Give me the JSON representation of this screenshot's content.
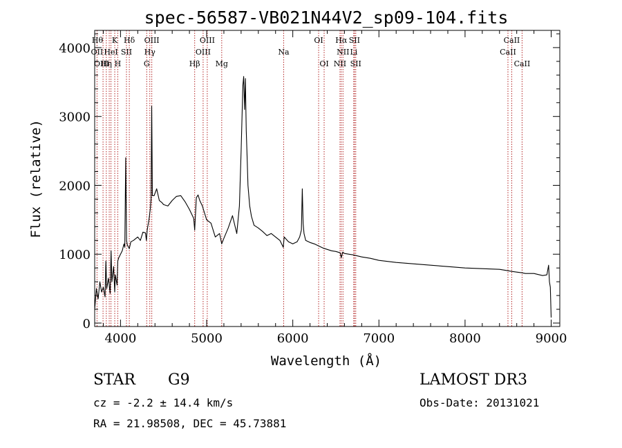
{
  "chart_data": {
    "type": "line",
    "title": "spec-56587-VB021N44V2_sp09-104.fits",
    "xlabel": "Wavelength (Å)",
    "ylabel": "Flux (relative)",
    "xlim": [
      3700,
      9100
    ],
    "ylim": [
      -50,
      4250
    ],
    "xticks": [
      4000,
      5000,
      6000,
      7000,
      8000,
      9000
    ],
    "yticks": [
      0,
      1000,
      2000,
      3000,
      4000
    ],
    "series": [
      {
        "name": "flux",
        "x": [
          3700,
          3720,
          3740,
          3760,
          3780,
          3800,
          3820,
          3830,
          3840,
          3860,
          3880,
          3890,
          3900,
          3920,
          3933,
          3940,
          3960,
          3968,
          3980,
          4000,
          4020,
          4040,
          4050,
          4060,
          4070,
          4080,
          4102,
          4120,
          4150,
          4180,
          4200,
          4230,
          4260,
          4290,
          4300,
          4310,
          4330,
          4345,
          4355,
          4362,
          4370,
          4390,
          4420,
          4450,
          4480,
          4500,
          4550,
          4600,
          4650,
          4700,
          4750,
          4800,
          4850,
          4861,
          4880,
          4900,
          4920,
          4950,
          4980,
          5000,
          5050,
          5100,
          5150,
          5175,
          5200,
          5250,
          5300,
          5350,
          5380,
          5400,
          5420,
          5430,
          5440,
          5450,
          5455,
          5460,
          5470,
          5480,
          5500,
          5520,
          5550,
          5600,
          5650,
          5700,
          5750,
          5800,
          5850,
          5890,
          5900,
          5950,
          6000,
          6050,
          6080,
          6100,
          6110,
          6120,
          6130,
          6150,
          6200,
          6250,
          6300,
          6350,
          6400,
          6450,
          6500,
          6550,
          6563,
          6580,
          6600,
          6700,
          6800,
          6900,
          7000,
          7200,
          7400,
          7600,
          7800,
          8000,
          8200,
          8400,
          8498,
          8542,
          8600,
          8662,
          8700,
          8800,
          8900,
          8950,
          8970,
          8980,
          8990,
          9000
        ],
        "values": [
          200,
          500,
          350,
          600,
          450,
          520,
          380,
          900,
          500,
          650,
          430,
          1050,
          600,
          820,
          450,
          700,
          550,
          900,
          950,
          1000,
          1050,
          1150,
          1100,
          2400,
          1200,
          1130,
          1080,
          1180,
          1200,
          1230,
          1250,
          1200,
          1320,
          1310,
          1200,
          1350,
          1500,
          1650,
          1800,
          3150,
          1850,
          1850,
          1950,
          1780,
          1750,
          1720,
          1700,
          1780,
          1840,
          1850,
          1760,
          1650,
          1520,
          1350,
          1820,
          1860,
          1780,
          1700,
          1580,
          1500,
          1450,
          1250,
          1300,
          1150,
          1230,
          1380,
          1560,
          1300,
          1700,
          2500,
          3450,
          3580,
          3100,
          3550,
          3150,
          2800,
          2400,
          2000,
          1700,
          1550,
          1420,
          1380,
          1330,
          1270,
          1300,
          1250,
          1200,
          1100,
          1250,
          1180,
          1150,
          1180,
          1250,
          1350,
          1950,
          1450,
          1300,
          1200,
          1170,
          1150,
          1120,
          1090,
          1070,
          1050,
          1040,
          1020,
          950,
          1030,
          1010,
          990,
          960,
          940,
          910,
          880,
          860,
          840,
          820,
          800,
          790,
          780,
          760,
          750,
          740,
          730,
          720,
          720,
          690,
          700,
          840,
          600,
          520,
          80
        ]
      }
    ],
    "line_markers": [
      {
        "name": "Hθ",
        "wavelength": 3797,
        "row": 0,
        "align": "right"
      },
      {
        "name": "Hη",
        "wavelength": 3835,
        "row": 2,
        "align": "center"
      },
      {
        "name": "OII",
        "wavelength": 3727,
        "row": 1,
        "align": "center"
      },
      {
        "name": "OIII",
        "wavelength": 3869,
        "row": 2,
        "align": "right"
      },
      {
        "name": "HeI",
        "wavelength": 3889,
        "row": 1,
        "align": "center"
      },
      {
        "name": "K",
        "wavelength": 3933,
        "row": 0,
        "align": "center"
      },
      {
        "name": "H",
        "wavelength": 3968,
        "row": 2,
        "align": "center"
      },
      {
        "name": "SII",
        "wavelength": 4069,
        "row": 1,
        "align": "center"
      },
      {
        "name": "Hδ",
        "wavelength": 4102,
        "row": 0,
        "align": "center"
      },
      {
        "name": "G",
        "wavelength": 4304,
        "row": 2,
        "align": "center"
      },
      {
        "name": "Hγ",
        "wavelength": 4340,
        "row": 1,
        "align": "center"
      },
      {
        "name": "OIII",
        "wavelength": 4363,
        "row": 0,
        "align": "center"
      },
      {
        "name": "Hβ",
        "wavelength": 4861,
        "row": 2,
        "align": "center"
      },
      {
        "name": "OIII",
        "wavelength": 4959,
        "row": 1,
        "align": "center"
      },
      {
        "name": "OIII",
        "wavelength": 5007,
        "row": 0,
        "align": "center"
      },
      {
        "name": "Mg",
        "wavelength": 5175,
        "row": 2,
        "align": "center"
      },
      {
        "name": "Na",
        "wavelength": 5894,
        "row": 1,
        "align": "center"
      },
      {
        "name": "OI",
        "wavelength": 6300,
        "row": 0,
        "align": "center"
      },
      {
        "name": "OI",
        "wavelength": 6364,
        "row": 2,
        "align": "center"
      },
      {
        "name": "NII",
        "wavelength": 6548,
        "row": 2,
        "align": "center"
      },
      {
        "name": "Hα",
        "wavelength": 6563,
        "row": 0,
        "align": "center"
      },
      {
        "name": "NII",
        "wavelength": 6583,
        "row": 1,
        "align": "center"
      },
      {
        "name": "SII",
        "wavelength": 6716,
        "row": 0,
        "align": "center"
      },
      {
        "name": "SII",
        "wavelength": 6731,
        "row": 2,
        "align": "center"
      },
      {
        "name": "Li",
        "wavelength": 6708,
        "row": 1,
        "align": "center"
      },
      {
        "name": "CaII",
        "wavelength": 8498,
        "row": 1,
        "align": "center"
      },
      {
        "name": "CaII",
        "wavelength": 8542,
        "row": 0,
        "align": "center"
      },
      {
        "name": "CaII",
        "wavelength": 8662,
        "row": 2,
        "align": "center"
      }
    ]
  },
  "info": {
    "object_type": "STAR",
    "subclass": "G9",
    "survey": "LAMOST DR3",
    "redshift": "cz = -2.2 ± 14.4 km/s",
    "obs_date": "Obs-Date: 20131021",
    "coords": "RA =  21.98508, DEC =  45.73881"
  },
  "colors": {
    "line_markers": "#b22222",
    "spectrum": "#000000",
    "axes": "#000000"
  }
}
